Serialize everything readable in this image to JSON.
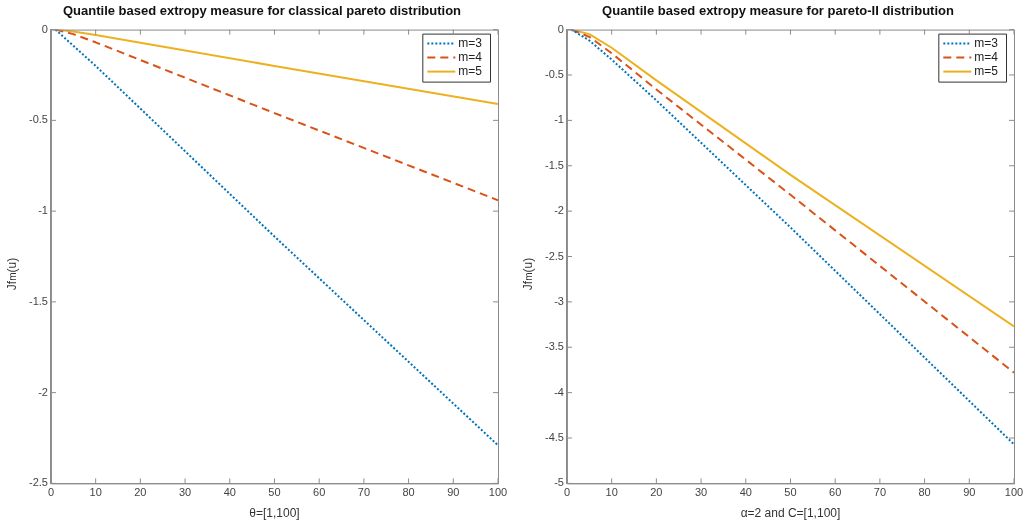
{
  "chart_data": [
    {
      "type": "line",
      "title": "Quantile based extropy measure for classical pareto distribution",
      "xlabel": "θ=[1,100]",
      "ylabel": "Jf$_{m}$(u)",
      "xlim": [
        0,
        100
      ],
      "xticks": [
        0,
        10,
        20,
        30,
        40,
        50,
        60,
        70,
        80,
        90,
        100
      ],
      "ylim": [
        -2.5,
        0
      ],
      "yticks": [
        -2.5,
        -2,
        -1.5,
        -1,
        -0.5,
        0
      ],
      "legend": "top right",
      "grid": false,
      "marker": "none",
      "series": [
        {
          "name": "m=3",
          "color": "#0072bd",
          "line_style": "dotted",
          "x": [
            1,
            10,
            50,
            100
          ],
          "values": [
            0,
            -0.2,
            -1.14,
            -2.29
          ]
        },
        {
          "name": "m=4",
          "color": "#d95319",
          "line_style": "dashed",
          "x": [
            1,
            5,
            10,
            50,
            100
          ],
          "values": [
            0,
            -0.025,
            -0.07,
            -0.46,
            -0.94
          ]
        },
        {
          "name": "m=5",
          "color": "#edb120",
          "line_style": "solid",
          "x": [
            1,
            5,
            10,
            50,
            100
          ],
          "values": [
            0,
            -0.01,
            -0.03,
            -0.2,
            -0.41
          ]
        }
      ]
    },
    {
      "type": "line",
      "title": "Quantile based extropy measure for pareto-II distribution",
      "xlabel": "α=2 and C=[1,100]",
      "ylabel": "Jf$_{m}$(u)",
      "xlim": [
        0,
        100
      ],
      "xticks": [
        0,
        10,
        20,
        30,
        40,
        50,
        60,
        70,
        80,
        90,
        100
      ],
      "ylim": [
        -5,
        0
      ],
      "yticks": [
        -5,
        -4.5,
        -4,
        -3.5,
        -3,
        -2.5,
        -2,
        -1.5,
        -1,
        -0.5,
        0
      ],
      "legend": "top right",
      "grid": false,
      "marker": "none",
      "series": [
        {
          "name": "m=3",
          "color": "#0072bd",
          "line_style": "dotted",
          "x": [
            1,
            5,
            10,
            20,
            50,
            100
          ],
          "values": [
            0,
            -0.12,
            -0.33,
            -0.78,
            -2.18,
            -4.57
          ]
        },
        {
          "name": "m=4",
          "color": "#d95319",
          "line_style": "dashed",
          "x": [
            1,
            5,
            10,
            20,
            50,
            100
          ],
          "values": [
            0,
            -0.08,
            -0.26,
            -0.66,
            -1.82,
            -3.78
          ]
        },
        {
          "name": "m=5",
          "color": "#edb120",
          "line_style": "solid",
          "x": [
            1,
            5,
            10,
            20,
            50,
            100
          ],
          "values": [
            0,
            -0.05,
            -0.2,
            -0.56,
            -1.6,
            -3.27
          ]
        }
      ]
    }
  ]
}
